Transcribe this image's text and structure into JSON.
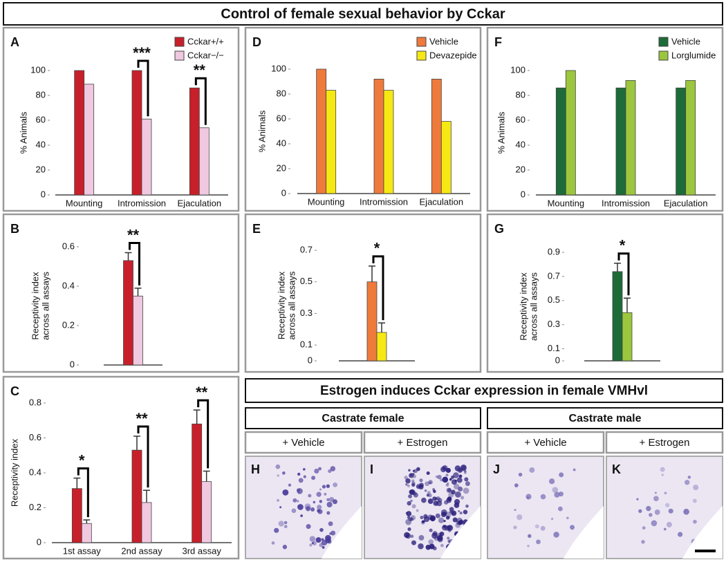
{
  "title": "Control of female sexual behavior by Cckar",
  "chart_data": [
    {
      "type": "bar",
      "panel": "A",
      "ylabel": "% Animals",
      "categories": [
        "Mounting",
        "Intromission",
        "Ejaculation"
      ],
      "series": [
        {
          "name": "Cckar+/+",
          "color": "#c8202a",
          "values": [
            100,
            100,
            86
          ]
        },
        {
          "name": "Cckar−/−",
          "color": "#f0c8e0",
          "values": [
            89,
            61,
            54
          ]
        }
      ],
      "significance": [
        null,
        "***",
        "**"
      ],
      "ylim": [
        0,
        100
      ],
      "yticks": [
        0,
        20,
        40,
        60,
        80,
        100
      ]
    },
    {
      "type": "bar",
      "panel": "D",
      "ylabel": "% Animals",
      "categories": [
        "Mounting",
        "Intromission",
        "Ejaculation"
      ],
      "series": [
        {
          "name": "Vehicle",
          "color": "#ee7a3c",
          "values": [
            100,
            92,
            92
          ]
        },
        {
          "name": "Devazepide",
          "color": "#f6e812",
          "values": [
            83,
            83,
            58
          ]
        }
      ],
      "ylim": [
        0,
        100
      ],
      "yticks": [
        0,
        20,
        40,
        60,
        80,
        100
      ]
    },
    {
      "type": "bar",
      "panel": "F",
      "ylabel": "% Animals",
      "categories": [
        "Mounting",
        "Intromission",
        "Ejaculation"
      ],
      "series": [
        {
          "name": "Vehicle",
          "color": "#1d6b38",
          "values": [
            86,
            86,
            86
          ]
        },
        {
          "name": "Lorglumide",
          "color": "#9cc63e",
          "values": [
            100,
            92,
            92
          ]
        }
      ],
      "ylim": [
        0,
        100
      ],
      "yticks": [
        0,
        20,
        40,
        60,
        80,
        100
      ]
    },
    {
      "type": "bar",
      "panel": "B",
      "ylabel": [
        "Receptivity index",
        "across all assays"
      ],
      "categories": [
        null
      ],
      "series": [
        {
          "color": "#c8202a",
          "values": [
            0.53
          ],
          "errors": [
            0.04
          ]
        },
        {
          "color": "#f0c8e0",
          "values": [
            0.35
          ],
          "errors": [
            0.04
          ]
        }
      ],
      "significance": [
        "**"
      ],
      "ylim": [
        0,
        0.6
      ],
      "yticks": [
        0,
        0.2,
        0.4,
        0.6
      ]
    },
    {
      "type": "bar",
      "panel": "E",
      "ylabel": [
        "Receptivity index",
        "across all assays"
      ],
      "categories": [
        null
      ],
      "series": [
        {
          "color": "#ee7a3c",
          "values": [
            0.5
          ],
          "errors": [
            0.1
          ]
        },
        {
          "color": "#f6e812",
          "values": [
            0.18
          ],
          "errors": [
            0.06
          ]
        }
      ],
      "significance": [
        "*"
      ],
      "ylim": [
        0,
        0.7
      ],
      "yticks": [
        0,
        0.1,
        0.3,
        0.5,
        0.7
      ]
    },
    {
      "type": "bar",
      "panel": "G",
      "ylabel": [
        "Receptivity index",
        "across all assays"
      ],
      "categories": [
        null
      ],
      "series": [
        {
          "color": "#1d6b38",
          "values": [
            0.74
          ],
          "errors": [
            0.07
          ]
        },
        {
          "color": "#9cc63e",
          "values": [
            0.4
          ],
          "errors": [
            0.12
          ]
        }
      ],
      "significance": [
        "*"
      ],
      "ylim": [
        0,
        0.9
      ],
      "yticks": [
        0,
        0.1,
        0.3,
        0.5,
        0.7,
        0.9
      ]
    },
    {
      "type": "bar",
      "panel": "C",
      "ylabel": "Receptivity index",
      "categories": [
        "1st assay",
        "2nd assay",
        "3rd assay"
      ],
      "series": [
        {
          "color": "#c8202a",
          "values": [
            0.31,
            0.53,
            0.68
          ],
          "errors": [
            0.06,
            0.08,
            0.08
          ]
        },
        {
          "color": "#f0c8e0",
          "values": [
            0.11,
            0.23,
            0.35
          ],
          "errors": [
            0.02,
            0.07,
            0.06
          ]
        }
      ],
      "significance": [
        "*",
        "**",
        "**"
      ],
      "ylim": [
        0,
        0.8
      ],
      "yticks": [
        0,
        0.2,
        0.4,
        0.6,
        0.8
      ]
    }
  ],
  "expression": {
    "title": "Estrogen induces Cckar expression in female VMHvl",
    "groups": [
      {
        "label": "Castrate female",
        "conditions": [
          "+ Vehicle",
          "+ Estrogen"
        ]
      },
      {
        "label": "Castrate male",
        "conditions": [
          "+ Vehicle",
          "+ Estrogen"
        ]
      }
    ],
    "panels": [
      "H",
      "I",
      "J",
      "K"
    ]
  }
}
